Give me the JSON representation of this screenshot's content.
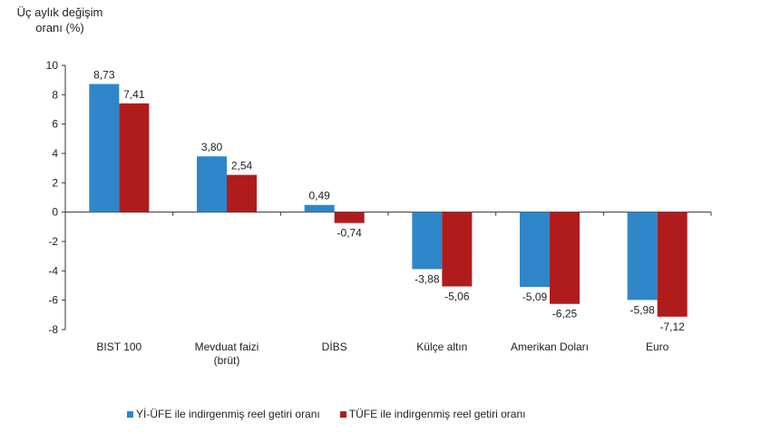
{
  "chart_data": {
    "type": "bar",
    "ylabel_lines": [
      "Üç aylık değişim",
      "oranı (%)"
    ],
    "ylim": [
      -8,
      10
    ],
    "yticks": [
      "10",
      "8",
      "6",
      "4",
      "2",
      "0",
      "-2",
      "-4",
      "-6",
      "-8"
    ],
    "categories": [
      [
        "BIST 100"
      ],
      [
        "Mevduat faizi",
        "(brüt)"
      ],
      [
        "DİBS"
      ],
      [
        "Külçe altın"
      ],
      [
        "Amerikan Doları"
      ],
      [
        "Euro"
      ]
    ],
    "series": [
      {
        "name": "Yİ-ÜFE ile indirgenmiş reel getiri oranı",
        "color": "#2e86c9",
        "values": [
          8.73,
          3.8,
          0.49,
          -3.88,
          -5.09,
          -5.98
        ],
        "labels": [
          "8,73",
          "3,80",
          "0,49",
          "-3,88",
          "-5,09",
          "-5,98"
        ]
      },
      {
        "name": "TÜFE ile indirgenmiş reel getiri oranı",
        "color": "#b01c1c",
        "values": [
          7.41,
          2.54,
          -0.74,
          -5.06,
          -6.25,
          -7.12
        ],
        "labels": [
          "7,41",
          "2,54",
          "-0,74",
          "-5,06",
          "-6,25",
          "-7,12"
        ]
      }
    ],
    "legend_position": "bottom",
    "grid": false
  }
}
